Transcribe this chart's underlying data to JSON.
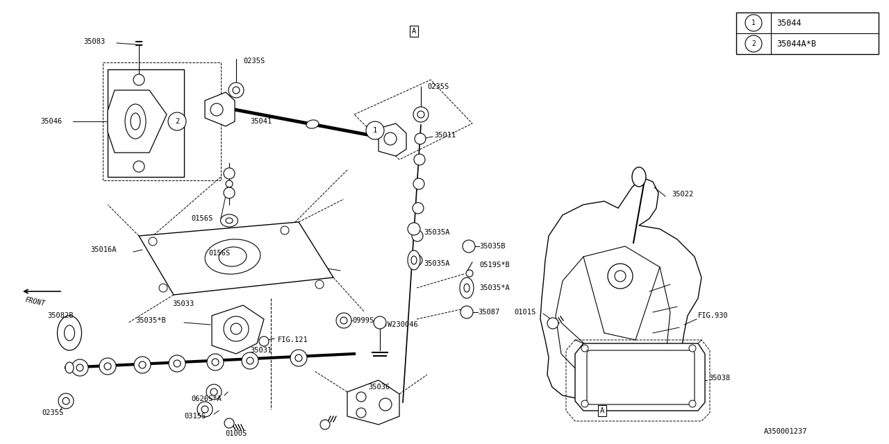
{
  "bg_color": "#ffffff",
  "line_color": "#000000",
  "font_family": "monospace",
  "diagram_id": "A350001237",
  "legend": [
    {
      "num": "1",
      "label": "35044"
    },
    {
      "num": "2",
      "label": "35044A*B"
    }
  ]
}
